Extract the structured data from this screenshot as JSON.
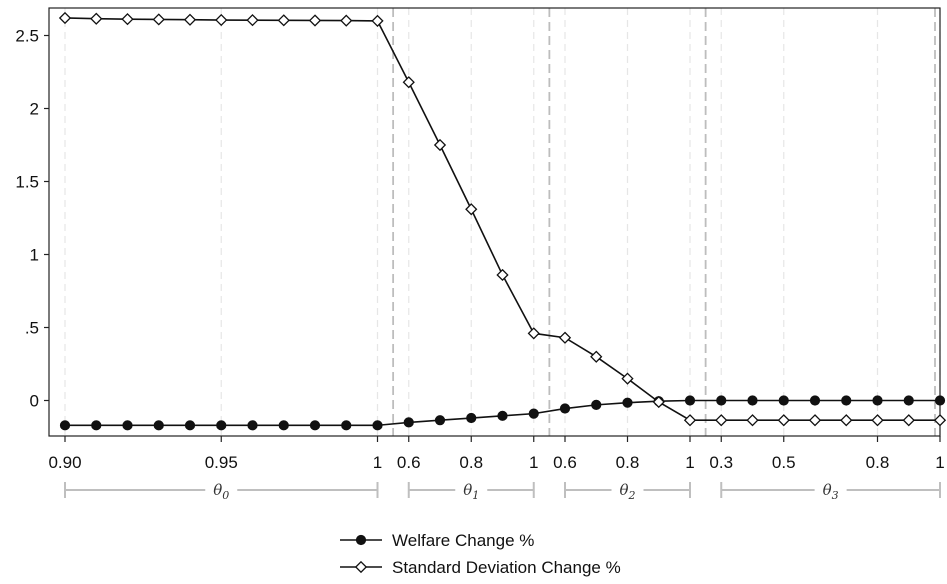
{
  "chart_data": {
    "type": "line",
    "ylim": [
      -0.25,
      2.75
    ],
    "y_ticks": [
      {
        "value": 2.5,
        "label": "2.5"
      },
      {
        "value": 2,
        "label": "2"
      },
      {
        "value": 1.5,
        "label": "1.5"
      },
      {
        "value": 1,
        "label": "1"
      },
      {
        "value": 0.5,
        "label": ".5"
      },
      {
        "value": 0,
        "label": "0"
      }
    ],
    "x_ticks": [
      {
        "index": 0,
        "label": "0.90"
      },
      {
        "index": 5,
        "label": "0.95"
      },
      {
        "index": 10,
        "label": "1"
      },
      {
        "index": 11,
        "label": "0.6"
      },
      {
        "index": 13,
        "label": "0.8"
      },
      {
        "index": 15,
        "label": "1"
      },
      {
        "index": 16,
        "label": "0.6"
      },
      {
        "index": 18,
        "label": "0.8"
      },
      {
        "index": 20,
        "label": "1"
      },
      {
        "index": 21,
        "label": "0.3"
      },
      {
        "index": 23,
        "label": "0.5"
      },
      {
        "index": 26,
        "label": "0.8"
      },
      {
        "index": 28,
        "label": "1"
      }
    ],
    "groups": [
      {
        "label": "θ0",
        "start": 0,
        "end": 10
      },
      {
        "label": "θ1",
        "start": 11,
        "end": 15
      },
      {
        "label": "θ2",
        "start": 16,
        "end": 20
      },
      {
        "label": "θ3",
        "start": 21,
        "end": 28
      }
    ],
    "separators": [
      10.5,
      15.5,
      20.5
    ],
    "x_values": [
      "0.90",
      "0.91",
      "0.92",
      "0.93",
      "0.94",
      "0.95",
      "0.96",
      "0.97",
      "0.98",
      "0.99",
      "1",
      "0.6",
      "0.7",
      "0.8",
      "0.9",
      "1",
      "0.6",
      "0.7",
      "0.8",
      "0.9",
      "1",
      "0.3",
      "0.4",
      "0.5",
      "0.6",
      "0.7",
      "0.8",
      "0.9",
      "1"
    ],
    "series": [
      {
        "name": "Welfare Change %",
        "marker": "filled-circle",
        "values": [
          -0.17,
          -0.17,
          -0.17,
          -0.17,
          -0.17,
          -0.17,
          -0.17,
          -0.17,
          -0.17,
          -0.17,
          -0.17,
          -0.15,
          -0.135,
          -0.12,
          -0.105,
          -0.09,
          -0.055,
          -0.03,
          -0.015,
          -0.005,
          0.0,
          0.0,
          0.0,
          0.0,
          0.0,
          0.0,
          0.0,
          0.0,
          0.0
        ]
      },
      {
        "name": "Standard Deviation Change %",
        "marker": "hollow-diamond",
        "values": [
          2.62,
          2.615,
          2.612,
          2.61,
          2.608,
          2.606,
          2.605,
          2.604,
          2.603,
          2.602,
          2.6,
          2.18,
          1.75,
          1.31,
          0.86,
          0.46,
          0.43,
          0.3,
          0.15,
          -0.01,
          -0.135,
          -0.135,
          -0.135,
          -0.135,
          -0.135,
          -0.135,
          -0.135,
          -0.135,
          -0.135
        ]
      }
    ],
    "legend_position": "bottom-center",
    "grid": "vertical-dashed"
  }
}
